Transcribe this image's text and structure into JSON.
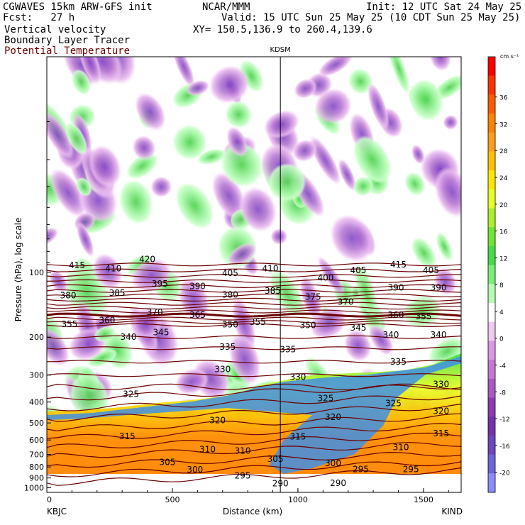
{
  "header": {
    "line1_left": "CGWAVES 15km ARW-GFS init",
    "line1_mid": "NCAR/MMM",
    "line1_right": "Init: 12 UTC Sat 24 May 25",
    "line2_left": "Fcst:   27 h",
    "line2_right": "Valid: 15 UTC Sun 25 May 25 (10 CDT Sun 25 May 25)",
    "line3_left": "Vertical velocity",
    "line3_right": "XY= 150.5,136.9 to 260.4,139.6",
    "line4_left": "Boundary Layer Tracer",
    "line5_left": "Potential Temperature"
  },
  "colors": {
    "potential_temperature": "#6b0000",
    "bg": "#ffffff"
  },
  "chart_data": {
    "type": "heatmap",
    "title": "",
    "xlabel": "Distance (km)",
    "ylabel": "Pressure (hPa), log scale",
    "x_ticks": [
      0,
      500,
      1000,
      1500
    ],
    "x_tick_labels": [
      "0",
      "500",
      "1000",
      "1500"
    ],
    "xlim": [
      0,
      1650
    ],
    "y_scale": "log",
    "y_ticks": [
      100,
      200,
      300,
      400,
      500,
      600,
      700,
      800,
      900,
      1000
    ],
    "y_tick_labels": [
      "100",
      "200",
      "300",
      "400",
      "500",
      "600",
      "700",
      "800",
      "900",
      "1000"
    ],
    "ylim": [
      1050,
      10
    ],
    "endpoint_labels": {
      "left": "KBJC",
      "right": "KIND"
    },
    "marker": {
      "label": "KDSM",
      "x": 930
    },
    "colorbar": {
      "units": "cm s⁻¹",
      "ticks": [
        36,
        32,
        28,
        24,
        20,
        16,
        12,
        8,
        4,
        0,
        -4,
        -8,
        -12,
        -16,
        -20
      ],
      "tick_labels": [
        "36",
        "32",
        "28",
        "24",
        "20",
        "16",
        "12",
        "8",
        "4",
        "0",
        "-4",
        "-8",
        "-12",
        "-16",
        "-20"
      ],
      "colors": [
        "#ff0000",
        "#ff3300",
        "#ff5a00",
        "#ff8200",
        "#ff9d18",
        "#ffc000",
        "#ffe600",
        "#e6ff28",
        "#aaf028",
        "#6ee632",
        "#46dc46",
        "#78f078",
        "#b4ffb4",
        "#ffffff",
        "#f0c8f0",
        "#dc96e6",
        "#c878d2",
        "#aa5ac3",
        "#8c3cb4",
        "#7832aa",
        "#6e46be",
        "#6e64dc",
        "#8c8cff"
      ]
    },
    "contour_lines": {
      "name": "Potential Temperature",
      "labels": [
        {
          "text": "415",
          "x": 120,
          "p": 93
        },
        {
          "text": "410",
          "x": 265,
          "p": 96
        },
        {
          "text": "420",
          "x": 400,
          "p": 87
        },
        {
          "text": "405",
          "x": 730,
          "p": 101
        },
        {
          "text": "410",
          "x": 890,
          "p": 96
        },
        {
          "text": "405",
          "x": 1240,
          "p": 98
        },
        {
          "text": "415",
          "x": 1400,
          "p": 92
        },
        {
          "text": "405",
          "x": 1530,
          "p": 98
        },
        {
          "text": "380",
          "x": 85,
          "p": 128
        },
        {
          "text": "385",
          "x": 280,
          "p": 125
        },
        {
          "text": "395",
          "x": 450,
          "p": 113
        },
        {
          "text": "390",
          "x": 600,
          "p": 116
        },
        {
          "text": "380",
          "x": 730,
          "p": 127
        },
        {
          "text": "385",
          "x": 900,
          "p": 122
        },
        {
          "text": "400",
          "x": 1110,
          "p": 106
        },
        {
          "text": "375",
          "x": 1060,
          "p": 130
        },
        {
          "text": "370",
          "x": 1190,
          "p": 137
        },
        {
          "text": "390",
          "x": 1390,
          "p": 118
        },
        {
          "text": "390",
          "x": 1560,
          "p": 118
        },
        {
          "text": "355",
          "x": 90,
          "p": 174
        },
        {
          "text": "360",
          "x": 240,
          "p": 167
        },
        {
          "text": "370",
          "x": 430,
          "p": 153
        },
        {
          "text": "365",
          "x": 600,
          "p": 158
        },
        {
          "text": "350",
          "x": 730,
          "p": 175
        },
        {
          "text": "355",
          "x": 840,
          "p": 170
        },
        {
          "text": "350",
          "x": 1040,
          "p": 176
        },
        {
          "text": "345",
          "x": 1240,
          "p": 181
        },
        {
          "text": "360",
          "x": 1390,
          "p": 158
        },
        {
          "text": "355",
          "x": 1500,
          "p": 160
        },
        {
          "text": "340",
          "x": 325,
          "p": 200
        },
        {
          "text": "345",
          "x": 455,
          "p": 190
        },
        {
          "text": "340",
          "x": 1370,
          "p": 195
        },
        {
          "text": "340",
          "x": 1560,
          "p": 195
        },
        {
          "text": "335",
          "x": 720,
          "p": 222
        },
        {
          "text": "335",
          "x": 960,
          "p": 228
        },
        {
          "text": "335",
          "x": 1400,
          "p": 260
        },
        {
          "text": "330",
          "x": 700,
          "p": 282
        },
        {
          "text": "330",
          "x": 1000,
          "p": 306
        },
        {
          "text": "330",
          "x": 1570,
          "p": 330
        },
        {
          "text": "325",
          "x": 335,
          "p": 368
        },
        {
          "text": "325",
          "x": 1110,
          "p": 385
        },
        {
          "text": "325",
          "x": 1380,
          "p": 405
        },
        {
          "text": "320",
          "x": 680,
          "p": 487
        },
        {
          "text": "320",
          "x": 1140,
          "p": 470
        },
        {
          "text": "320",
          "x": 1570,
          "p": 440
        },
        {
          "text": "315",
          "x": 320,
          "p": 578
        },
        {
          "text": "315",
          "x": 1000,
          "p": 580
        },
        {
          "text": "315",
          "x": 1570,
          "p": 560
        },
        {
          "text": "310",
          "x": 640,
          "p": 665
        },
        {
          "text": "310",
          "x": 780,
          "p": 675
        },
        {
          "text": "310",
          "x": 1410,
          "p": 650
        },
        {
          "text": "305",
          "x": 480,
          "p": 760
        },
        {
          "text": "305",
          "x": 910,
          "p": 735
        },
        {
          "text": "300",
          "x": 590,
          "p": 825
        },
        {
          "text": "300",
          "x": 1140,
          "p": 770
        },
        {
          "text": "295",
          "x": 780,
          "p": 880
        },
        {
          "text": "295",
          "x": 1250,
          "p": 820
        },
        {
          "text": "295",
          "x": 1450,
          "p": 820
        },
        {
          "text": "290",
          "x": 930,
          "p": 955
        },
        {
          "text": "290",
          "x": 1160,
          "p": 950
        }
      ]
    }
  }
}
